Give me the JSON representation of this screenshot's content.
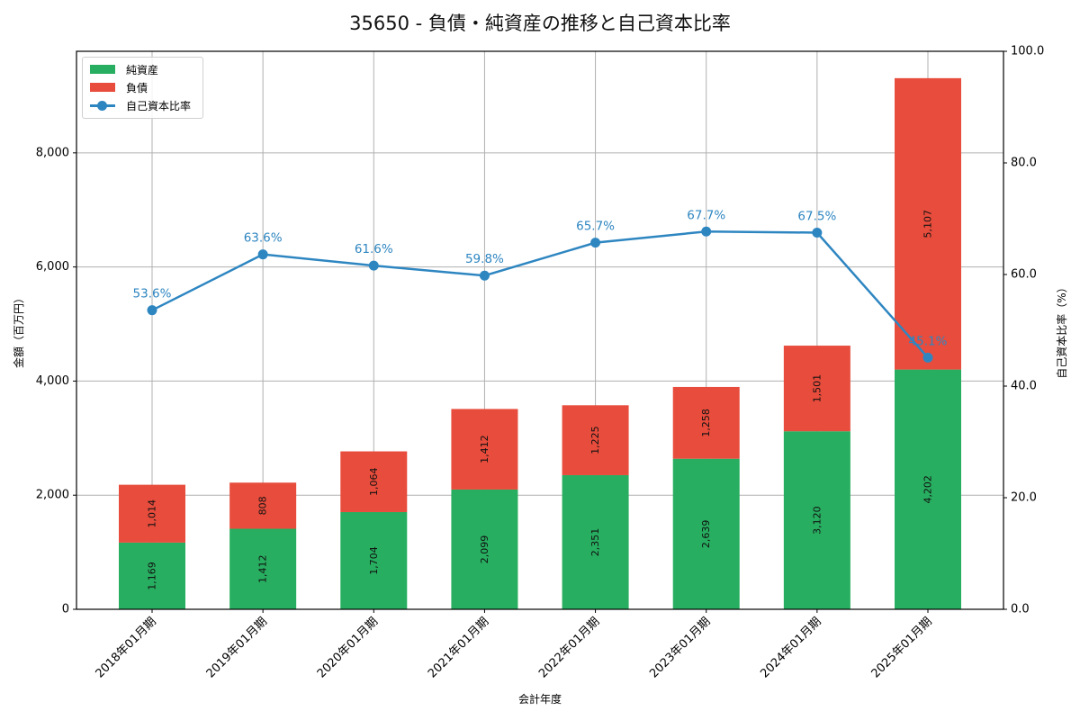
{
  "header": {
    "title": "35650 - 負債・純資産の推移と自己資本比率"
  },
  "legend": {
    "items": [
      {
        "label": "純資産",
        "color": "#27ae60",
        "kind": "bar"
      },
      {
        "label": "負債",
        "color": "#e74c3c",
        "kind": "bar"
      },
      {
        "label": "自己資本比率",
        "color": "#2e86c1",
        "kind": "line"
      }
    ]
  },
  "axes": {
    "xlabel": "会計年度",
    "ylabel_left": "金額（百万円）",
    "ylabel_right": "自己資本比率（%）",
    "left_ticks": [
      "0",
      "2,000",
      "4,000",
      "6,000",
      "8,000"
    ],
    "right_ticks": [
      "0.0",
      "20.0",
      "40.0",
      "60.0",
      "80.0",
      "100.0"
    ]
  },
  "chart_data": {
    "type": "bar",
    "title": "35650 - 負債・純資産の推移と自己資本比率",
    "xlabel": "会計年度",
    "ylabel": "金額（百万円）",
    "ylabel_right": "自己資本比率（%）",
    "stacked": true,
    "categories": [
      "2018年01月期",
      "2019年01月期",
      "2020年01月期",
      "2021年01月期",
      "2022年01月期",
      "2023年01月期",
      "2024年01月期",
      "2025年01月期"
    ],
    "series": [
      {
        "name": "純資産",
        "type": "bar",
        "color": "#27ae60",
        "axis": "left",
        "values": [
          1169,
          1412,
          1704,
          2099,
          2351,
          2639,
          3120,
          4202
        ],
        "labels": [
          "1,169",
          "1,412",
          "1,704",
          "2,099",
          "2,351",
          "2,639",
          "3,120",
          "4,202"
        ]
      },
      {
        "name": "負債",
        "type": "bar",
        "color": "#e74c3c",
        "axis": "left",
        "values": [
          1014,
          808,
          1064,
          1412,
          1225,
          1258,
          1501,
          5107
        ],
        "labels": [
          "1,014",
          "808",
          "1,064",
          "1,412",
          "1,225",
          "1,258",
          "1,501",
          "5,107"
        ]
      },
      {
        "name": "自己資本比率",
        "type": "line",
        "color": "#2e86c1",
        "axis": "right",
        "values": [
          53.6,
          63.6,
          61.6,
          59.8,
          65.7,
          67.7,
          67.5,
          45.1
        ],
        "labels": [
          "53.6%",
          "63.6%",
          "61.6%",
          "59.8%",
          "65.7%",
          "67.7%",
          "67.5%",
          "45.1%"
        ]
      }
    ],
    "ylim": [
      0,
      9780
    ],
    "ylim_right": [
      0,
      100
    ],
    "yticks": [
      0,
      2000,
      4000,
      6000,
      8000
    ],
    "yticks_right": [
      0,
      20,
      40,
      60,
      80,
      100
    ],
    "grid": true,
    "legend_position": "upper left"
  }
}
